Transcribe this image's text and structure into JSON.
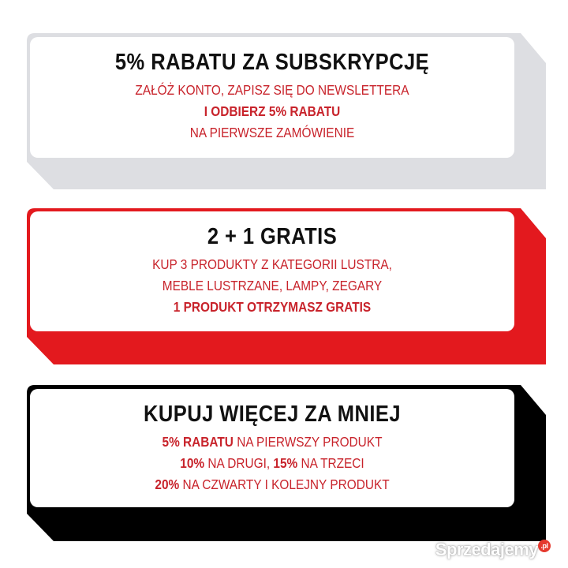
{
  "colors": {
    "accent_red": "#c8232b",
    "card1_back": "#dddee2",
    "card2_back": "#e3191e",
    "card3_back": "#000000"
  },
  "cards": [
    {
      "title": "5% RABATU ZA SUBSKRYPCJĘ",
      "line1": "ZAŁÓŻ KONTO, ZAPISZ SIĘ DO NEWSLETTERA",
      "line2": "I ODBIERZ 5% RABATU",
      "line3": "NA PIERWSZE ZAMÓWIENIE"
    },
    {
      "title": "2 + 1 GRATIS",
      "line1": "KUP 3 PRODUKTY Z KATEGORII LUSTRA,",
      "line2": "MEBLE LUSTRZANE, LAMPY, ZEGARY",
      "line3": "1 PRODUKT OTRZYMASZ GRATIS"
    },
    {
      "title": "KUPUJ WIĘCEJ ZA MNIEJ",
      "line1_bold": "5% RABATU",
      "line1_rest": " NA PIERWSZY PRODUKT",
      "line2_bold_a": "10%",
      "line2_rest_a": " NA DRUGI, ",
      "line2_bold_b": "15%",
      "line2_rest_b": " NA TRZECI",
      "line3_bold": "20%",
      "line3_rest": " NA CZWARTY I KOLEJNY PRODUKT"
    }
  ],
  "watermark": {
    "text": "Sprzedajemy",
    "badge": ".pl"
  }
}
